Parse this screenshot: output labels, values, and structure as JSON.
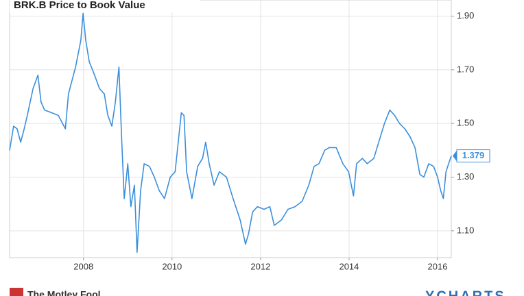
{
  "chart_data": {
    "type": "line",
    "title": "BRK.B Price to Book Value",
    "color": "#3a8fdc",
    "x": [
      2006.33,
      2006.42,
      2006.5,
      2006.58,
      2006.66,
      2006.73,
      2006.86,
      2006.97,
      2007.04,
      2007.12,
      2007.28,
      2007.43,
      2007.59,
      2007.66,
      2007.82,
      2007.94,
      2007.99,
      2008.05,
      2008.13,
      2008.25,
      2008.36,
      2008.47,
      2008.55,
      2008.64,
      2008.72,
      2008.8,
      2008.86,
      2008.92,
      2009.0,
      2009.07,
      2009.15,
      2009.21,
      2009.29,
      2009.37,
      2009.49,
      2009.6,
      2009.71,
      2009.83,
      2009.96,
      2010.07,
      2010.14,
      2010.21,
      2010.27,
      2010.33,
      2010.45,
      2010.58,
      2010.69,
      2010.76,
      2010.84,
      2010.95,
      2011.07,
      2011.23,
      2011.38,
      2011.54,
      2011.66,
      2011.73,
      2011.82,
      2011.93,
      2012.08,
      2012.21,
      2012.31,
      2012.47,
      2012.62,
      2012.78,
      2012.94,
      2013.09,
      2013.21,
      2013.32,
      2013.45,
      2013.55,
      2013.71,
      2013.86,
      2013.99,
      2014.1,
      2014.17,
      2014.3,
      2014.41,
      2014.56,
      2014.67,
      2014.8,
      2014.92,
      2015.03,
      2015.14,
      2015.26,
      2015.38,
      2015.49,
      2015.6,
      2015.69,
      2015.8,
      2015.91,
      2016.0,
      2016.07,
      2016.13,
      2016.19,
      2016.27,
      2016.31
    ],
    "values": [
      1.4,
      1.49,
      1.48,
      1.43,
      1.48,
      1.53,
      1.63,
      1.68,
      1.58,
      1.55,
      1.54,
      1.53,
      1.48,
      1.61,
      1.71,
      1.81,
      1.91,
      1.81,
      1.73,
      1.68,
      1.63,
      1.61,
      1.53,
      1.49,
      1.58,
      1.71,
      1.45,
      1.22,
      1.35,
      1.19,
      1.27,
      1.02,
      1.25,
      1.35,
      1.34,
      1.3,
      1.25,
      1.22,
      1.3,
      1.32,
      1.43,
      1.54,
      1.53,
      1.32,
      1.22,
      1.34,
      1.37,
      1.43,
      1.35,
      1.27,
      1.32,
      1.3,
      1.22,
      1.14,
      1.05,
      1.09,
      1.17,
      1.19,
      1.18,
      1.19,
      1.12,
      1.14,
      1.18,
      1.19,
      1.21,
      1.27,
      1.34,
      1.35,
      1.4,
      1.41,
      1.41,
      1.35,
      1.32,
      1.23,
      1.35,
      1.37,
      1.35,
      1.37,
      1.43,
      1.5,
      1.55,
      1.53,
      1.5,
      1.48,
      1.45,
      1.41,
      1.31,
      1.3,
      1.35,
      1.34,
      1.3,
      1.25,
      1.22,
      1.32,
      1.36,
      1.379
    ],
    "xlim": [
      2006.33,
      2016.31
    ],
    "xticks": [
      2008,
      2010,
      2012,
      2014,
      2016
    ],
    "ylim": [
      1.0,
      1.96
    ],
    "yticks": [
      {
        "value": 1.1,
        "label": "1.10"
      },
      {
        "value": 1.3,
        "label": "1.30"
      },
      {
        "value": 1.5,
        "label": "1.50"
      },
      {
        "value": 1.7,
        "label": "1.70"
      },
      {
        "value": 1.9,
        "label": "1.90"
      }
    ],
    "grid": true,
    "footer_left": "The Motley Fool",
    "footer_right": "YCHARTS"
  }
}
